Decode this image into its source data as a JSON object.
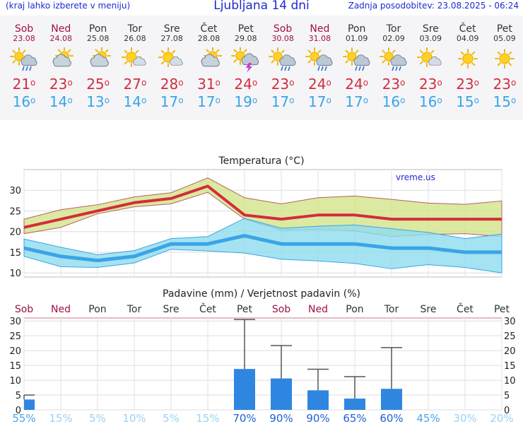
{
  "header": {
    "subtitle": "(kraj lahko izberete v meniju)",
    "title": "Ljubljana 14 dni",
    "updated": "Zadnja posodobitev: 23.08.2025 - 06:24"
  },
  "days": [
    {
      "name": "Sob",
      "date": "23.08",
      "weekend": true,
      "icon": "sun-cloud-rain-icon",
      "tmax": "21",
      "tmin": "16"
    },
    {
      "name": "Ned",
      "date": "24.08",
      "weekend": true,
      "icon": "sun-cloud-icon",
      "tmax": "23",
      "tmin": "14"
    },
    {
      "name": "Pon",
      "date": "25.08",
      "weekend": false,
      "icon": "sun-cloud-icon",
      "tmax": "25",
      "tmin": "13"
    },
    {
      "name": "Tor",
      "date": "26.08",
      "weekend": false,
      "icon": "sun-small-cloud-icon",
      "tmax": "27",
      "tmin": "14"
    },
    {
      "name": "Sre",
      "date": "27.08",
      "weekend": false,
      "icon": "sun-small-cloud-icon",
      "tmax": "28",
      "tmin": "17"
    },
    {
      "name": "Čet",
      "date": "28.08",
      "weekend": false,
      "icon": "sun-cloud-icon",
      "tmax": "31",
      "tmin": "17"
    },
    {
      "name": "Pet",
      "date": "29.08",
      "weekend": false,
      "icon": "cloud-lightning-icon",
      "tmax": "24",
      "tmin": "19"
    },
    {
      "name": "Sob",
      "date": "30.08",
      "weekend": true,
      "icon": "sun-cloud-rain-icon",
      "tmax": "23",
      "tmin": "17"
    },
    {
      "name": "Ned",
      "date": "31.08",
      "weekend": true,
      "icon": "sun-cloud-rain-icon",
      "tmax": "24",
      "tmin": "17"
    },
    {
      "name": "Pon",
      "date": "01.09",
      "weekend": false,
      "icon": "sun-cloud-rain-icon",
      "tmax": "24",
      "tmin": "17"
    },
    {
      "name": "Tor",
      "date": "02.09",
      "weekend": false,
      "icon": "sun-cloud-rain-icon",
      "tmax": "23",
      "tmin": "16"
    },
    {
      "name": "Sre",
      "date": "03.09",
      "weekend": false,
      "icon": "sun-small-cloud-icon",
      "tmax": "23",
      "tmin": "16"
    },
    {
      "name": "Čet",
      "date": "04.09",
      "weekend": false,
      "icon": "sun-icon",
      "tmax": "23",
      "tmin": "15"
    },
    {
      "name": "Pet",
      "date": "05.09",
      "weekend": false,
      "icon": "sun-icon",
      "tmax": "23",
      "tmin": "15"
    }
  ],
  "degree": "o",
  "colors": {
    "weekend": "#a0104a",
    "weekday": "#333333",
    "max": "#d42c3c",
    "min": "#3aa4e6",
    "bar": "#2f86e0"
  },
  "chart_data": [
    {
      "type": "line",
      "title": "Temperatura (°C)",
      "watermark": "vreme.us",
      "ylim": [
        9,
        35
      ],
      "yticks": [
        10,
        15,
        20,
        25,
        30
      ],
      "x": [
        0,
        1,
        2,
        3,
        4,
        5,
        6,
        7,
        8,
        9,
        10,
        11,
        12,
        13
      ],
      "series": [
        {
          "role": "max",
          "values": [
            21,
            23,
            25,
            27,
            28,
            31,
            24,
            23,
            24,
            24,
            23,
            23,
            23,
            23
          ]
        },
        {
          "role": "max-upper",
          "values": [
            23,
            25.3,
            26.5,
            28.4,
            29.4,
            33,
            28.2,
            26.7,
            28.2,
            28.6,
            27.8,
            26.9,
            26.6,
            27.4
          ]
        },
        {
          "role": "max-lower",
          "values": [
            19.5,
            21,
            24.3,
            26,
            26.7,
            29.5,
            23,
            20.3,
            20.5,
            20.2,
            18.8,
            19.3,
            19.5,
            18.8
          ]
        },
        {
          "role": "min",
          "values": [
            16,
            14,
            13,
            14,
            17,
            17,
            19,
            17,
            17,
            17,
            16,
            16,
            15,
            15
          ]
        },
        {
          "role": "min-upper",
          "values": [
            18.2,
            16.2,
            14.4,
            15.4,
            18.3,
            18.8,
            23.2,
            20.8,
            21.3,
            21.6,
            20.7,
            19.8,
            18.3,
            19.4
          ]
        },
        {
          "role": "min-lower",
          "values": [
            14,
            11.5,
            11.3,
            12.4,
            15.7,
            15.3,
            14.8,
            13.3,
            12.9,
            12.3,
            11,
            12,
            11.3,
            10
          ]
        }
      ]
    },
    {
      "type": "bar",
      "title": "Padavine (mm) / Verjetnost padavin (%)",
      "ylim": [
        0,
        31
      ],
      "yticks": [
        0,
        5,
        10,
        15,
        20,
        25,
        30
      ],
      "categories": [
        "Sob",
        "Ned",
        "Pon",
        "Tor",
        "Sre",
        "Čet",
        "Pet",
        "Sob",
        "Ned",
        "Pon",
        "Tor",
        "Sre",
        "Čet",
        "Pet"
      ],
      "values": [
        3.5,
        0,
        0,
        0,
        0,
        0,
        13.8,
        10.6,
        6.6,
        3.8,
        7.1,
        0,
        0,
        0
      ],
      "error_high": [
        5,
        0,
        0,
        0,
        0,
        0,
        30.5,
        21.7,
        13.7,
        11.2,
        21,
        0,
        0,
        0
      ],
      "probability": [
        "55%",
        "15%",
        "5%",
        "10%",
        "5%",
        "15%",
        "70%",
        "90%",
        "90%",
        "65%",
        "60%",
        "45%",
        "30%",
        "20%"
      ],
      "probability_values": [
        55,
        15,
        5,
        10,
        5,
        15,
        70,
        90,
        90,
        65,
        60,
        45,
        30,
        20
      ]
    }
  ]
}
